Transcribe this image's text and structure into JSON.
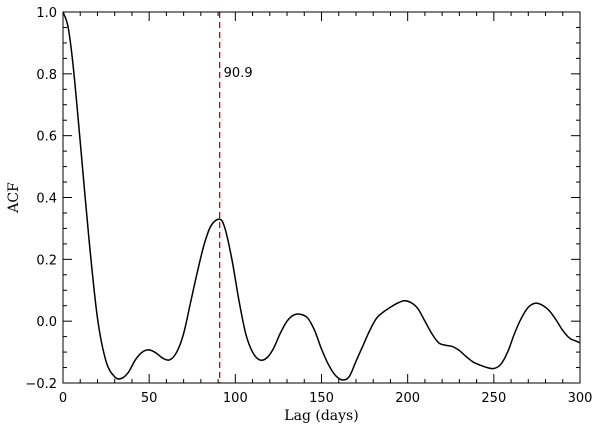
{
  "chart_data": {
    "type": "line",
    "title": "",
    "xlabel": "Lag (days)",
    "ylabel": "ACF",
    "xlim": [
      0,
      300
    ],
    "ylim": [
      -0.2,
      1.0
    ],
    "xticks": [
      0,
      50,
      100,
      150,
      200,
      250,
      300
    ],
    "xtick_labels": [
      "0",
      "50",
      "100",
      "150",
      "200",
      "250",
      "300"
    ],
    "yticks": [
      -0.2,
      0.0,
      0.2,
      0.4,
      0.6,
      0.8,
      1.0
    ],
    "ytick_labels": [
      "−0.2",
      "0.0",
      "0.2",
      "0.4",
      "0.6",
      "0.8",
      "1.0"
    ],
    "x_minor_step": 10,
    "y_minor_step": 0.05,
    "grid": false,
    "series": [
      {
        "color": "#000000",
        "x": [
          0,
          3,
          6,
          10,
          15,
          20,
          25,
          30,
          34,
          38,
          42,
          46,
          50,
          54,
          58,
          62,
          66,
          70,
          74,
          78,
          82,
          86,
          90.9,
          94,
          98,
          102,
          106,
          110,
          114,
          118,
          122,
          126,
          130,
          134,
          138,
          142,
          146,
          150,
          154,
          158,
          162,
          166,
          170,
          174,
          178,
          182,
          186,
          190,
          194,
          198,
          202,
          206,
          210,
          214,
          218,
          222,
          226,
          230,
          234,
          238,
          242,
          246,
          250,
          254,
          258,
          262,
          266,
          270,
          274,
          278,
          282,
          286,
          290,
          294,
          298,
          300
        ],
        "y": [
          1.0,
          0.95,
          0.82,
          0.58,
          0.27,
          0.01,
          -0.13,
          -0.18,
          -0.185,
          -0.165,
          -0.125,
          -0.1,
          -0.093,
          -0.103,
          -0.12,
          -0.125,
          -0.1,
          -0.04,
          0.06,
          0.16,
          0.25,
          0.31,
          0.33,
          0.3,
          0.2,
          0.07,
          -0.04,
          -0.1,
          -0.125,
          -0.12,
          -0.09,
          -0.04,
          0.0,
          0.02,
          0.022,
          0.01,
          -0.03,
          -0.09,
          -0.14,
          -0.175,
          -0.19,
          -0.18,
          -0.13,
          -0.08,
          -0.03,
          0.01,
          0.03,
          0.045,
          0.058,
          0.066,
          0.06,
          0.04,
          0.0,
          -0.04,
          -0.07,
          -0.078,
          -0.082,
          -0.095,
          -0.115,
          -0.132,
          -0.142,
          -0.15,
          -0.153,
          -0.14,
          -0.1,
          -0.04,
          0.01,
          0.045,
          0.058,
          0.052,
          0.035,
          0.005,
          -0.03,
          -0.055,
          -0.065,
          -0.07
        ]
      }
    ],
    "vertical_line": {
      "x": 90.9,
      "color": "#cc0000",
      "style": "dashed",
      "label": "90.9"
    }
  }
}
